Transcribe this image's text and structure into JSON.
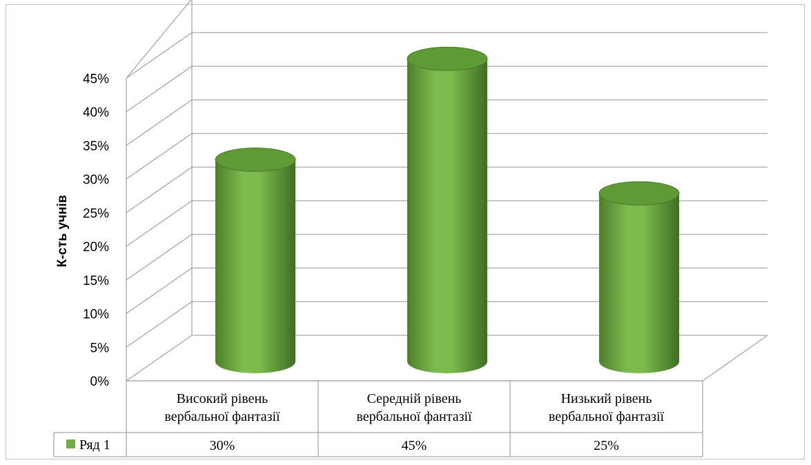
{
  "chart_data": {
    "type": "bar",
    "style": "3d-cylinder",
    "categories": [
      [
        "Високий рівень",
        "вербальної фантазії"
      ],
      [
        "Середній рівень",
        "вербальної фантазії"
      ],
      [
        "Низький рівень",
        "вербальної фантазії"
      ]
    ],
    "series": [
      {
        "name": "Ряд 1",
        "values": [
          30,
          45,
          25
        ],
        "color": "#70ad47"
      }
    ],
    "data_labels": [
      "30%",
      "45%",
      "25%"
    ],
    "ylabel": "К-сть учнів",
    "ylim": [
      0,
      45
    ],
    "ytick_step": 5,
    "ytick_format": "percent",
    "grid": true,
    "data_table": true
  },
  "colors": {
    "bar": "#70ad47",
    "bar_dark": "#4f7f2c",
    "bar_top": "#5e9a35",
    "grid": "#a6a6a6"
  }
}
